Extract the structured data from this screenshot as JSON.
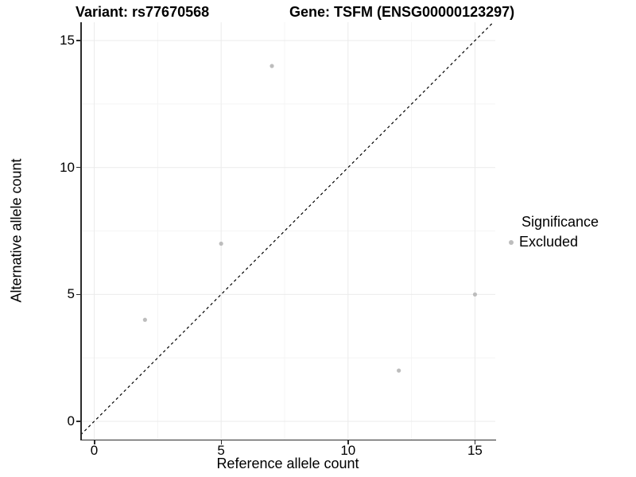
{
  "chart_data": {
    "type": "scatter",
    "title_left": "Variant: rs77670568",
    "title_right": "Gene: TSFM (ENSG00000123297)",
    "xlabel": "Reference allele count",
    "ylabel": "Alternative allele count",
    "xlim": [
      -0.5,
      15.8
    ],
    "ylim": [
      -0.7,
      15.7
    ],
    "x_ticks": [
      0,
      5,
      10,
      15
    ],
    "y_ticks": [
      0,
      5,
      10,
      15
    ],
    "x_minor_gridlines": [
      2.5,
      7.5,
      12.5
    ],
    "y_minor_gridlines": [
      2.5,
      7.5,
      12.5
    ],
    "grid": true,
    "series": [
      {
        "name": "Excluded",
        "color": "#bdbdbd",
        "points": [
          [
            2,
            4
          ],
          [
            5,
            7
          ],
          [
            7,
            14
          ],
          [
            12,
            2
          ],
          [
            15,
            5
          ]
        ]
      }
    ],
    "reference_line": {
      "type": "identity y=x",
      "style": "dashed",
      "color": "#000000"
    },
    "legend": {
      "title": "Significance",
      "position": "right",
      "items": [
        {
          "label": "Excluded",
          "color": "#bdbdbd"
        }
      ]
    },
    "colors": {
      "background": "#ffffff",
      "axis_line": "#2b2b2b",
      "major_grid": "#ebebeb",
      "minor_grid": "#f4f4f4",
      "point": "#bdbdbd",
      "text": "#000000"
    }
  }
}
